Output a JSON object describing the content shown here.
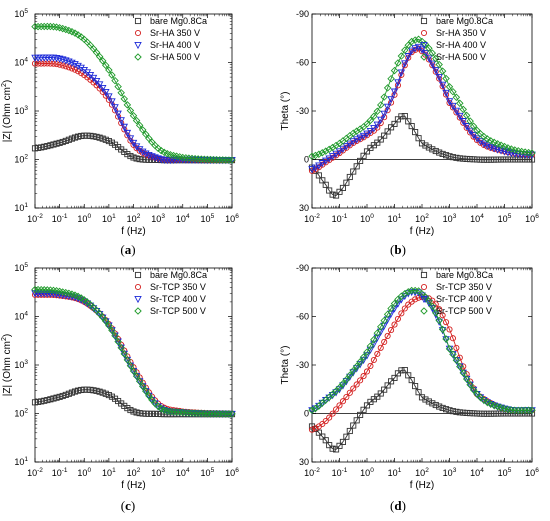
{
  "figure": {
    "panels": [
      {
        "caption": "(a)",
        "ylabel_main": "|Z| (Ohm cm",
        "ylabel_sup": "2",
        "ylabel_end": ")"
      },
      {
        "caption": "(b)",
        "ylabel_main": "Theta (°)"
      },
      {
        "caption": "(c)",
        "ylabel_main": "|Z| (Ohm cm",
        "ylabel_sup": "2",
        "ylabel_end": ")"
      },
      {
        "caption": "(d)",
        "ylabel_main": "Theta (°)"
      }
    ]
  },
  "style": {
    "series_colors": [
      "#333333",
      "#d42020",
      "#1c2ad8",
      "#1f9a2a"
    ],
    "series_markers": [
      "square",
      "circle",
      "triangle-down",
      "diamond"
    ],
    "axes_color": "#000000"
  },
  "chart_data": [
    {
      "type": "scatter",
      "xlabel": "f (Hz)",
      "ylabel": "|Z| (Ohm cm2)",
      "xscale": "log",
      "yscale": "log",
      "xlim": [
        0.01,
        1000000
      ],
      "ylim": [
        10,
        100000
      ],
      "xticks": [
        {
          "v": 0.01,
          "b": "10",
          "e": "-2"
        },
        {
          "v": 0.1,
          "b": "10",
          "e": "-1"
        },
        {
          "v": 1,
          "b": "10",
          "e": "0"
        },
        {
          "v": 10,
          "b": "10",
          "e": "1"
        },
        {
          "v": 100,
          "b": "10",
          "e": "2"
        },
        {
          "v": 1000,
          "b": "10",
          "e": "3"
        },
        {
          "v": 10000,
          "b": "10",
          "e": "4"
        },
        {
          "v": 100000,
          "b": "10",
          "e": "5"
        },
        {
          "v": 1000000,
          "b": "10",
          "e": "6"
        }
      ],
      "yticks": [
        {
          "v": 10,
          "b": "10",
          "e": "1"
        },
        {
          "v": 100,
          "b": "10",
          "e": "2"
        },
        {
          "v": 1000,
          "b": "10",
          "e": "3"
        },
        {
          "v": 10000,
          "b": "10",
          "e": "4"
        },
        {
          "v": 100000,
          "b": "10",
          "e": "5"
        }
      ],
      "legend_position": "top-right",
      "grid": false,
      "series": [
        {
          "name": "bare Mg0.8Ca",
          "x": [
            0.01,
            0.1,
            1,
            10,
            100,
            1000,
            10000,
            1000000
          ],
          "y": [
            170,
            220,
            310,
            240,
            110,
            98,
            97,
            97
          ]
        },
        {
          "name": "Sr-HA 350 V",
          "x": [
            0.01,
            0.1,
            1,
            10,
            100,
            1000,
            10000,
            1000000
          ],
          "y": [
            9500,
            9000,
            5500,
            1700,
            200,
            105,
            100,
            97
          ]
        },
        {
          "name": "Sr-HA 400 V",
          "x": [
            0.01,
            0.1,
            1,
            10,
            100,
            1000,
            10000,
            1000000
          ],
          "y": [
            12500,
            12000,
            7000,
            2000,
            220,
            105,
            100,
            97
          ]
        },
        {
          "name": "Sr-HA 500 V",
          "x": [
            0.01,
            0.1,
            1,
            10,
            100,
            1000,
            10000,
            1000000
          ],
          "y": [
            55000,
            52000,
            30000,
            7000,
            800,
            170,
            110,
            97
          ]
        }
      ]
    },
    {
      "type": "scatter",
      "xlabel": "f (Hz)",
      "ylabel": "Theta (°)",
      "xscale": "log",
      "yscale": "linear",
      "yinverted": true,
      "xlim": [
        0.01,
        1000000
      ],
      "ylim": [
        30,
        -90
      ],
      "xticks": [
        {
          "v": 0.01,
          "b": "10",
          "e": "-2"
        },
        {
          "v": 0.1,
          "b": "10",
          "e": "-1"
        },
        {
          "v": 1,
          "b": "10",
          "e": "0"
        },
        {
          "v": 10,
          "b": "10",
          "e": "1"
        },
        {
          "v": 100,
          "b": "10",
          "e": "2"
        },
        {
          "v": 1000,
          "b": "10",
          "e": "3"
        },
        {
          "v": 10000,
          "b": "10",
          "e": "4"
        },
        {
          "v": 100000,
          "b": "10",
          "e": "5"
        },
        {
          "v": 1000000,
          "b": "10",
          "e": "6"
        }
      ],
      "yticks": [
        {
          "v": -90,
          "b": "-90"
        },
        {
          "v": -60,
          "b": "-60"
        },
        {
          "v": -30,
          "b": "-30"
        },
        {
          "v": 0,
          "b": "0"
        },
        {
          "v": 30,
          "b": "30"
        }
      ],
      "zero_line": 0,
      "legend_position": "top-right",
      "grid": false,
      "series": [
        {
          "name": "bare Mg0.8Ca",
          "x": [
            0.01,
            0.03,
            0.06,
            0.1,
            0.3,
            1,
            3,
            10,
            20,
            30,
            100,
            1000,
            10000,
            100000,
            1000000
          ],
          "y": [
            5,
            15,
            22,
            20,
            8,
            -5,
            -12,
            -22,
            -27,
            -24,
            -10,
            -2,
            0,
            0,
            0
          ]
        },
        {
          "name": "Sr-HA 350 V",
          "x": [
            0.01,
            0.03,
            0.1,
            0.3,
            1,
            3,
            10,
            30,
            60,
            100,
            300,
            1000,
            10000,
            100000,
            1000000
          ],
          "y": [
            7,
            2,
            -4,
            -10,
            -15,
            -22,
            -40,
            -62,
            -68,
            -67,
            -55,
            -35,
            -12,
            -5,
            -3
          ]
        },
        {
          "name": "Sr-HA 400 V",
          "x": [
            0.01,
            0.03,
            0.1,
            0.3,
            1,
            3,
            10,
            30,
            60,
            100,
            300,
            1000,
            10000,
            100000,
            1000000
          ],
          "y": [
            6,
            1,
            -5,
            -11,
            -16,
            -24,
            -42,
            -63,
            -69,
            -68,
            -56,
            -36,
            -13,
            -5,
            -3
          ]
        },
        {
          "name": "Sr-HA 500 V",
          "x": [
            0.01,
            0.03,
            0.1,
            0.3,
            1,
            3,
            10,
            30,
            60,
            100,
            300,
            1000,
            10000,
            100000,
            1000000
          ],
          "y": [
            -2,
            -5,
            -10,
            -16,
            -22,
            -33,
            -55,
            -70,
            -74,
            -73,
            -63,
            -45,
            -18,
            -8,
            -4
          ]
        }
      ]
    },
    {
      "type": "scatter",
      "xlabel": "f (Hz)",
      "ylabel": "|Z| (Ohm cm2)",
      "xscale": "log",
      "yscale": "log",
      "xlim": [
        0.01,
        1000000
      ],
      "ylim": [
        10,
        100000
      ],
      "xticks": [
        {
          "v": 0.01,
          "b": "10",
          "e": "-2"
        },
        {
          "v": 0.1,
          "b": "10",
          "e": "-1"
        },
        {
          "v": 1,
          "b": "10",
          "e": "0"
        },
        {
          "v": 10,
          "b": "10",
          "e": "1"
        },
        {
          "v": 100,
          "b": "10",
          "e": "2"
        },
        {
          "v": 1000,
          "b": "10",
          "e": "3"
        },
        {
          "v": 10000,
          "b": "10",
          "e": "4"
        },
        {
          "v": 100000,
          "b": "10",
          "e": "5"
        },
        {
          "v": 1000000,
          "b": "10",
          "e": "6"
        }
      ],
      "yticks": [
        {
          "v": 10,
          "b": "10",
          "e": "1"
        },
        {
          "v": 100,
          "b": "10",
          "e": "2"
        },
        {
          "v": 1000,
          "b": "10",
          "e": "3"
        },
        {
          "v": 10000,
          "b": "10",
          "e": "4"
        },
        {
          "v": 100000,
          "b": "10",
          "e": "5"
        }
      ],
      "legend_position": "top-right",
      "grid": false,
      "series": [
        {
          "name": "bare Mg0.8Ca",
          "x": [
            0.01,
            0.1,
            1,
            10,
            100,
            1000,
            10000,
            1000000
          ],
          "y": [
            170,
            220,
            310,
            240,
            110,
            98,
            97,
            97
          ]
        },
        {
          "name": "Sr-TCP 350 V",
          "x": [
            0.01,
            0.1,
            1,
            10,
            100,
            1000,
            10000,
            1000000
          ],
          "y": [
            28000,
            27000,
            20000,
            7000,
            900,
            160,
            110,
            100
          ]
        },
        {
          "name": "Sr-TCP 400 V",
          "x": [
            0.01,
            0.1,
            1,
            10,
            100,
            1000,
            10000,
            1000000
          ],
          "y": [
            30000,
            28500,
            20500,
            6500,
            750,
            140,
            105,
            98
          ]
        },
        {
          "name": "Sr-TCP 500 V",
          "x": [
            0.01,
            0.1,
            1,
            10,
            100,
            1000,
            10000,
            1000000
          ],
          "y": [
            36000,
            33000,
            22000,
            6500,
            750,
            140,
            105,
            98
          ]
        }
      ]
    },
    {
      "type": "scatter",
      "xlabel": "f (Hz)",
      "ylabel": "Theta (°)",
      "xscale": "log",
      "yscale": "linear",
      "yinverted": true,
      "xlim": [
        0.01,
        1000000
      ],
      "ylim": [
        30,
        -90
      ],
      "xticks": [
        {
          "v": 0.01,
          "b": "10",
          "e": "-2"
        },
        {
          "v": 0.1,
          "b": "10",
          "e": "-1"
        },
        {
          "v": 1,
          "b": "10",
          "e": "0"
        },
        {
          "v": 10,
          "b": "10",
          "e": "1"
        },
        {
          "v": 100,
          "b": "10",
          "e": "2"
        },
        {
          "v": 1000,
          "b": "10",
          "e": "3"
        },
        {
          "v": 10000,
          "b": "10",
          "e": "4"
        },
        {
          "v": 100000,
          "b": "10",
          "e": "5"
        },
        {
          "v": 1000000,
          "b": "10",
          "e": "6"
        }
      ],
      "yticks": [
        {
          "v": -90,
          "b": "-90"
        },
        {
          "v": -60,
          "b": "-60"
        },
        {
          "v": -30,
          "b": "-30"
        },
        {
          "v": 0,
          "b": "0"
        },
        {
          "v": 30,
          "b": "30"
        }
      ],
      "zero_line": 0,
      "legend_position": "top-right",
      "grid": false,
      "series": [
        {
          "name": "bare Mg0.8Ca",
          "x": [
            0.01,
            0.03,
            0.06,
            0.1,
            0.3,
            1,
            3,
            10,
            20,
            30,
            100,
            1000,
            10000,
            100000,
            1000000
          ],
          "y": [
            8,
            16,
            22,
            20,
            8,
            -5,
            -12,
            -22,
            -27,
            -24,
            -10,
            -2,
            0,
            0,
            0
          ]
        },
        {
          "name": "Sr-TCP 350 V",
          "x": [
            0.01,
            0.03,
            0.1,
            0.3,
            1,
            3,
            10,
            30,
            100,
            300,
            1000,
            3000,
            10000,
            100000,
            1000000
          ],
          "y": [
            10,
            5,
            -5,
            -15,
            -26,
            -40,
            -55,
            -67,
            -72,
            -68,
            -52,
            -30,
            -12,
            -3,
            -2
          ]
        },
        {
          "name": "Sr-TCP 400 V",
          "x": [
            0.01,
            0.03,
            0.1,
            0.3,
            1,
            3,
            10,
            30,
            60,
            100,
            300,
            1000,
            10000,
            100000,
            1000000
          ],
          "y": [
            -2,
            -8,
            -15,
            -25,
            -36,
            -50,
            -65,
            -74,
            -75,
            -73,
            -62,
            -40,
            -12,
            -3,
            -2
          ]
        },
        {
          "name": "Sr-TCP 500 V",
          "x": [
            0.01,
            0.03,
            0.1,
            0.3,
            1,
            3,
            10,
            30,
            60,
            100,
            300,
            1000,
            10000,
            100000,
            1000000
          ],
          "y": [
            -2,
            -8,
            -16,
            -26,
            -38,
            -53,
            -68,
            -75,
            -76,
            -74,
            -63,
            -40,
            -12,
            -3,
            -2
          ]
        }
      ]
    }
  ]
}
